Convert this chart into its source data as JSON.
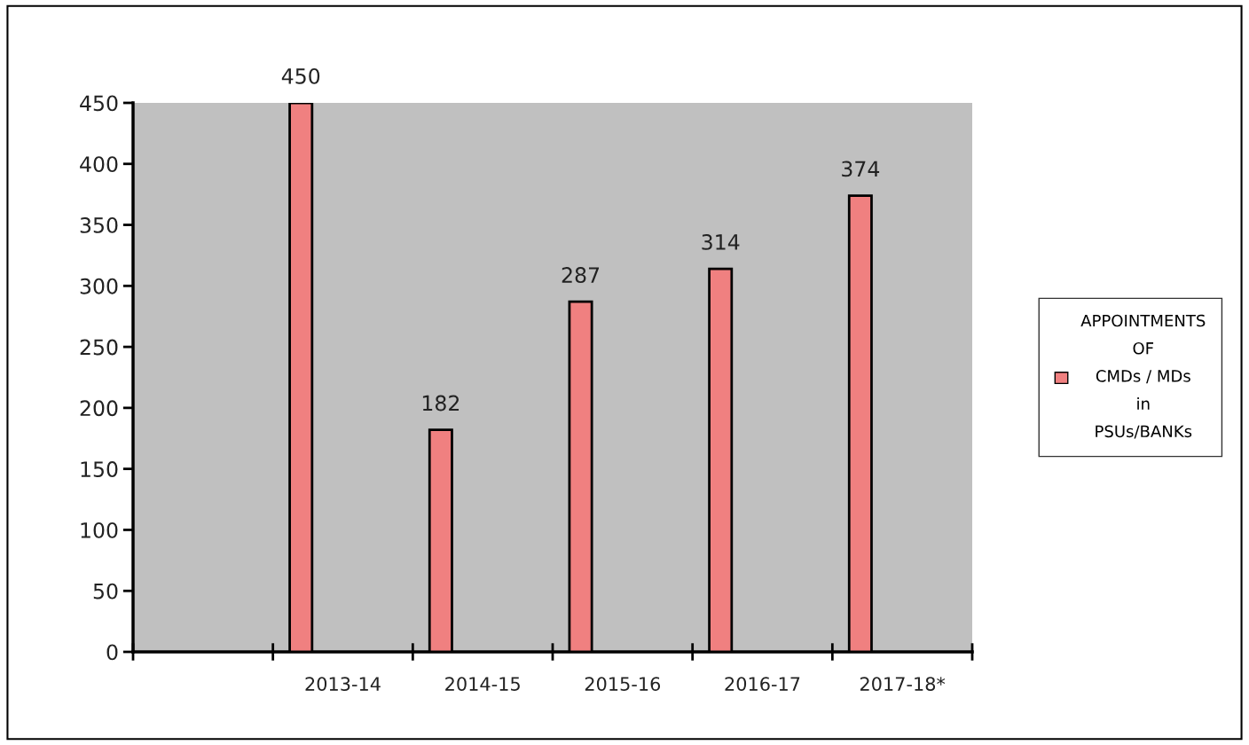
{
  "chart_data": {
    "type": "bar",
    "categories": [
      null,
      "2013-14",
      "2014-15",
      "2015-16",
      "2016-17",
      "2017-18*"
    ],
    "series": [
      {
        "name": "APPOINTMENTS\nOF\nCMDs / MDs\nin\nPSUs/BANKs",
        "color": "#f08080",
        "values": [
          null,
          450,
          182,
          287,
          314,
          374
        ]
      }
    ],
    "ylim": [
      0,
      450
    ],
    "yticks": [
      0,
      50,
      100,
      150,
      200,
      250,
      300,
      350,
      400,
      450
    ],
    "data_labels": true,
    "grid": false,
    "legend": "right"
  }
}
